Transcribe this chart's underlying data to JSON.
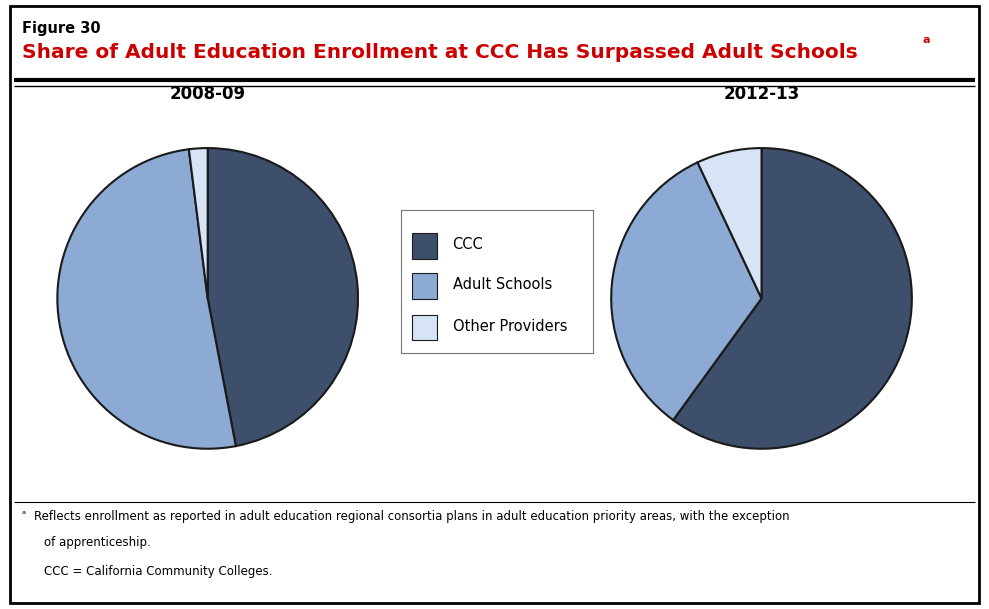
{
  "figure_label": "Figure 30",
  "title": "Share of Adult Education Enrollment at CCC Has Surpassed Adult Schools",
  "title_superscript": "a",
  "pie1_label": "2008-09",
  "pie2_label": "2012-13",
  "pie1_values": [
    47,
    51,
    2
  ],
  "pie2_values": [
    60,
    33,
    7
  ],
  "categories": [
    "CCC",
    "Adult Schools",
    "Other Providers"
  ],
  "colors": [
    "#3d4f6b",
    "#8caad4",
    "#d6e4f5"
  ],
  "edge_color": "#1a1a1a",
  "background_color": "#ffffff",
  "footnote_line1": "Reflects enrollment as reported in adult education regional consortia plans in adult education priority areas, with the exception",
  "footnote_line2": "of apprenticeship.",
  "footnote_line3": "CCC = California Community Colleges.",
  "title_color": "#cc0000",
  "fig_label_color": "#000000"
}
